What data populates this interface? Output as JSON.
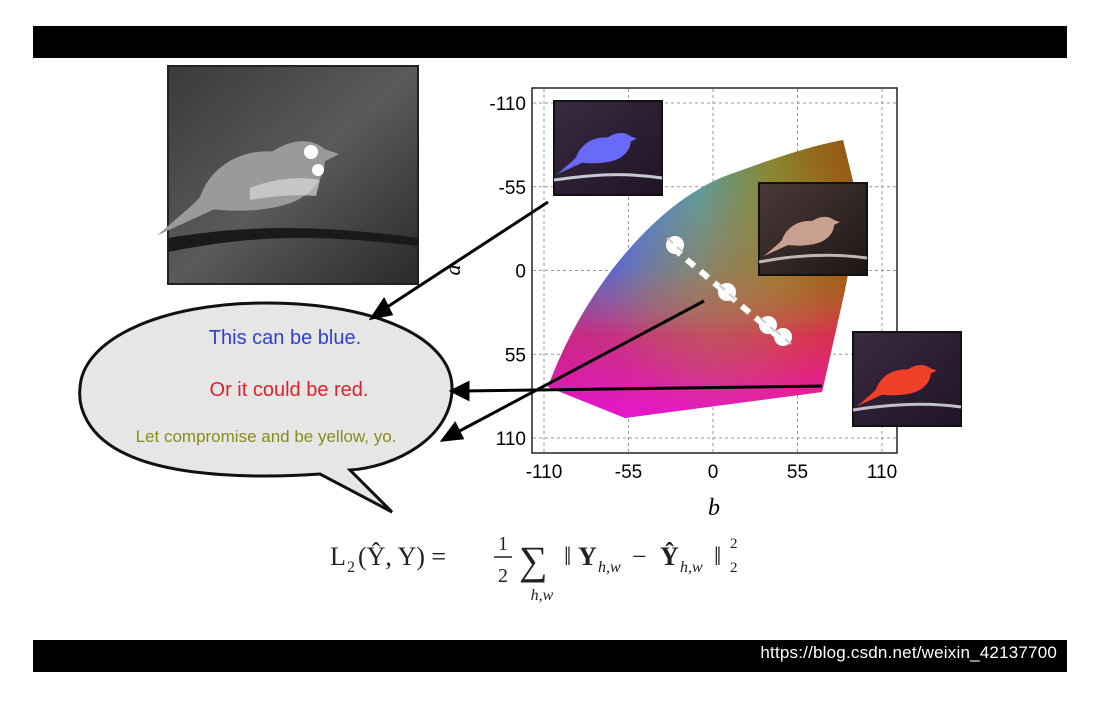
{
  "colors": {
    "bar": "#000000",
    "blue_text": "#2f3fd6",
    "red_text": "#e0202a",
    "yellow_text": "#8c8a1c",
    "bubble_fill": "#e6e6e6"
  },
  "bubble": {
    "line1": "This can be blue.",
    "line2": "Or it could be red.",
    "line3": "Let compromise and be yellow, yo."
  },
  "chart_data": {
    "type": "scatter",
    "xlabel": "b",
    "ylabel": "a",
    "xlim": [
      -110,
      110
    ],
    "ylim": [
      -110,
      110
    ],
    "y_inverted": true,
    "grid": true,
    "xticks": [
      "-110",
      "-55",
      "0",
      "55",
      "110"
    ],
    "yticks": [
      "-110",
      "-55",
      "0",
      "55",
      "110"
    ],
    "x_tick_values": [
      -110,
      -55,
      0,
      55,
      110
    ],
    "y_tick_values": [
      -110,
      -55,
      0,
      55,
      110
    ]
  },
  "formula": {
    "lhs": "L",
    "lhs_sub": "2",
    "args": "(Ŷ, Y) =",
    "frac_num": "1",
    "frac_den": "2",
    "sum": "∑",
    "sum_sub": "h,w",
    "norm_open": "‖",
    "y": "Y",
    "y_sub": "h,w",
    "minus": "−",
    "yhat": "Ŷ",
    "yhat_sub": "h,w",
    "norm_close": "‖",
    "norm_sup": "2",
    "norm_sub": "2"
  },
  "watermark": "https://blog.csdn.net/weixin_42137700",
  "icons": {
    "grayscale_photo": "bird-photo-icon",
    "blue_photo": "blue-bird-icon",
    "brown_photo": "brown-bird-icon",
    "red_photo": "red-bird-icon",
    "marker": "target-marker-icon"
  }
}
